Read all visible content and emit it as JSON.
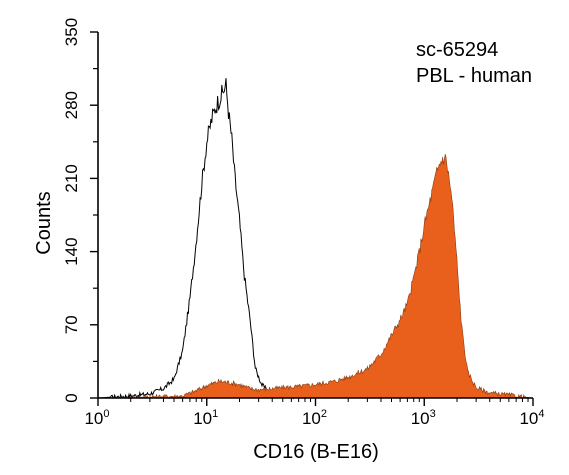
{
  "chart_data": {
    "type": "area",
    "xlabel": "CD16 (B-E16)",
    "ylabel": "Counts",
    "xscale": "log",
    "xlim": [
      1,
      10000
    ],
    "ylim": [
      0,
      350
    ],
    "grid": false,
    "x_ticks": [
      {
        "value": 1,
        "base": "10",
        "exp": "0"
      },
      {
        "value": 10,
        "base": "10",
        "exp": "1"
      },
      {
        "value": 100,
        "base": "10",
        "exp": "2"
      },
      {
        "value": 1000,
        "base": "10",
        "exp": "3"
      },
      {
        "value": 10000,
        "base": "10",
        "exp": "4"
      }
    ],
    "y_ticks": [
      "0",
      "70",
      "140",
      "210",
      "280",
      "350"
    ],
    "annotations": [
      "sc-65294",
      "PBL - human"
    ],
    "series": [
      {
        "style": "outline",
        "color": "#000000",
        "x": [
          1,
          2,
          3,
          4,
          5,
          6,
          7,
          8,
          9,
          10,
          11,
          12,
          13,
          14,
          15,
          16,
          17,
          18,
          20,
          22,
          25,
          28,
          32,
          36,
          40,
          50,
          60,
          70,
          80,
          100,
          150,
          300,
          1000,
          10000
        ],
        "y": [
          0,
          2,
          4,
          9,
          18,
          45,
          95,
          150,
          205,
          245,
          265,
          278,
          286,
          292,
          300,
          270,
          248,
          215,
          170,
          120,
          75,
          28,
          13,
          7,
          5,
          3,
          2,
          1.5,
          1,
          0.5,
          0.3,
          0.2,
          0.1,
          0
        ]
      },
      {
        "style": "filled",
        "color": "#e8601c",
        "x": [
          1,
          6,
          8,
          10,
          13,
          16,
          20,
          25,
          30,
          40,
          50,
          70,
          100,
          150,
          200,
          300,
          400,
          500,
          600,
          700,
          800,
          900,
          1000,
          1200,
          1300,
          1400,
          1500,
          1600,
          1800,
          2000,
          2200,
          2500,
          3000,
          4000,
          6000,
          10000
        ],
        "y": [
          0,
          2,
          7,
          12,
          16,
          15,
          13,
          9,
          8,
          9,
          10,
          11,
          13,
          16,
          20,
          28,
          42,
          60,
          75,
          90,
          115,
          140,
          165,
          200,
          215,
          225,
          230,
          228,
          190,
          130,
          70,
          25,
          10,
          5,
          3,
          0
        ]
      }
    ]
  }
}
